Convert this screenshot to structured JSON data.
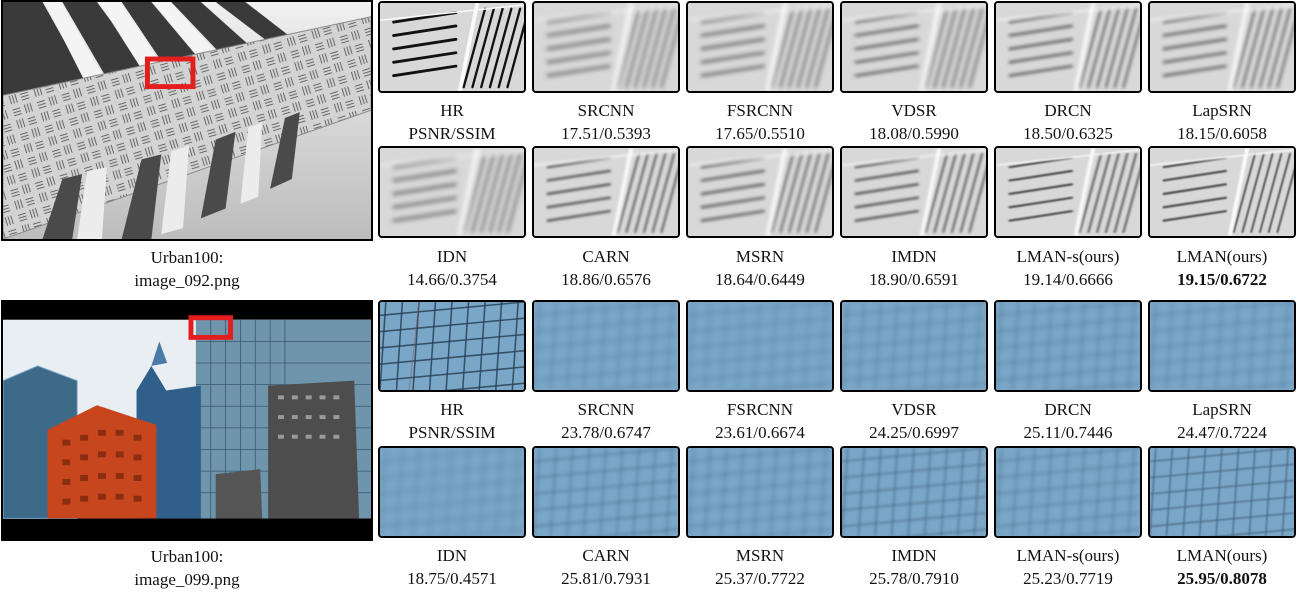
{
  "figures": [
    {
      "dataset": "Urban100:",
      "image": "image_092.png",
      "rows": [
        [
          {
            "name": "HR",
            "score": "PSNR/SSIM",
            "quality": 1.0
          },
          {
            "name": "SRCNN",
            "score": "17.51/0.5393",
            "quality": 0.25
          },
          {
            "name": "FSRCNN",
            "score": "17.65/0.5510",
            "quality": 0.28
          },
          {
            "name": "VDSR",
            "score": "18.08/0.5990",
            "quality": 0.35
          },
          {
            "name": "DRCN",
            "score": "18.50/0.6325",
            "quality": 0.45
          },
          {
            "name": "LapSRN",
            "score": "18.15/0.6058",
            "quality": 0.38
          }
        ],
        [
          {
            "name": "IDN",
            "score": "14.66/0.3754",
            "quality": 0.2
          },
          {
            "name": "CARN",
            "score": "18.86/0.6576",
            "quality": 0.55
          },
          {
            "name": "MSRN",
            "score": "18.64/0.6449",
            "quality": 0.5
          },
          {
            "name": "IMDN",
            "score": "18.90/0.6591",
            "quality": 0.55
          },
          {
            "name": "LMAN-s(ours)",
            "score": "19.14/0.6666",
            "quality": 0.7
          },
          {
            "name": "LMAN(ours)",
            "score": "19.15/0.6722",
            "quality": 0.75,
            "bold": true
          }
        ]
      ]
    },
    {
      "dataset": "Urban100:",
      "image": "image_099.png",
      "rows": [
        [
          {
            "name": "HR",
            "score": "PSNR/SSIM",
            "quality": 1.0
          },
          {
            "name": "SRCNN",
            "score": "23.78/0.6747",
            "quality": 0.15
          },
          {
            "name": "FSRCNN",
            "score": "23.61/0.6674",
            "quality": 0.12
          },
          {
            "name": "VDSR",
            "score": "24.25/0.6997",
            "quality": 0.2
          },
          {
            "name": "DRCN",
            "score": "25.11/0.7446",
            "quality": 0.3
          },
          {
            "name": "LapSRN",
            "score": "24.47/0.7224",
            "quality": 0.22
          }
        ],
        [
          {
            "name": "IDN",
            "score": "18.75/0.4571",
            "quality": 0.1
          },
          {
            "name": "CARN",
            "score": "25.81/0.7931",
            "quality": 0.4
          },
          {
            "name": "MSRN",
            "score": "25.37/0.7722",
            "quality": 0.3
          },
          {
            "name": "IMDN",
            "score": "25.78/0.7910",
            "quality": 0.55
          },
          {
            "name": "LMAN-s(ours)",
            "score": "25.23/0.7719",
            "quality": 0.35
          },
          {
            "name": "LMAN(ours)",
            "score": "25.95/0.8078",
            "quality": 0.7,
            "bold": true
          }
        ]
      ]
    }
  ],
  "colors": {
    "highlight_box": "#e41e1e",
    "facade_panel": "#cfcfcf",
    "glass_blue": "#7aa6c8",
    "brick_red": "#c8461e"
  }
}
